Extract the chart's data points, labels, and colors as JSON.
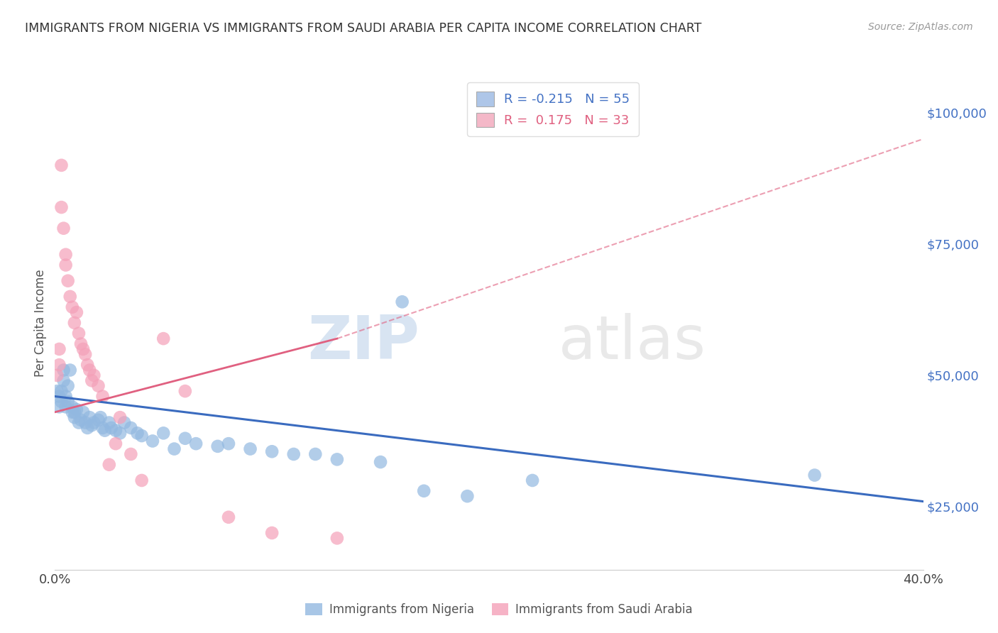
{
  "title": "IMMIGRANTS FROM NIGERIA VS IMMIGRANTS FROM SAUDI ARABIA PER CAPITA INCOME CORRELATION CHART",
  "source": "Source: ZipAtlas.com",
  "ylabel": "Per Capita Income",
  "yticks": [
    25000,
    50000,
    75000,
    100000
  ],
  "ytick_labels": [
    "$25,000",
    "$50,000",
    "$75,000",
    "$100,000"
  ],
  "xlim": [
    0.0,
    0.4
  ],
  "ylim": [
    13000,
    107000
  ],
  "nigeria_color": "#92b8e0",
  "saudi_color": "#f4a0b8",
  "nigeria_line_color": "#3a6bbf",
  "saudi_line_color": "#e06080",
  "background_color": "#ffffff",
  "grid_color": "#cccccc",
  "nigeria_points": [
    [
      0.001,
      47000
    ],
    [
      0.002,
      46000
    ],
    [
      0.002,
      44000
    ],
    [
      0.003,
      45000
    ],
    [
      0.003,
      47000
    ],
    [
      0.004,
      51000
    ],
    [
      0.004,
      49000
    ],
    [
      0.005,
      46000
    ],
    [
      0.005,
      44000
    ],
    [
      0.006,
      48000
    ],
    [
      0.006,
      45000
    ],
    [
      0.007,
      51000
    ],
    [
      0.008,
      43000
    ],
    [
      0.008,
      44000
    ],
    [
      0.009,
      43000
    ],
    [
      0.009,
      42000
    ],
    [
      0.01,
      43500
    ],
    [
      0.011,
      41000
    ],
    [
      0.012,
      41500
    ],
    [
      0.013,
      43000
    ],
    [
      0.014,
      41000
    ],
    [
      0.015,
      40000
    ],
    [
      0.016,
      42000
    ],
    [
      0.017,
      40500
    ],
    [
      0.018,
      41000
    ],
    [
      0.02,
      41500
    ],
    [
      0.021,
      42000
    ],
    [
      0.022,
      40000
    ],
    [
      0.023,
      39500
    ],
    [
      0.025,
      41000
    ],
    [
      0.026,
      40000
    ],
    [
      0.028,
      39500
    ],
    [
      0.03,
      39000
    ],
    [
      0.032,
      41000
    ],
    [
      0.035,
      40000
    ],
    [
      0.038,
      39000
    ],
    [
      0.04,
      38500
    ],
    [
      0.045,
      37500
    ],
    [
      0.05,
      39000
    ],
    [
      0.055,
      36000
    ],
    [
      0.06,
      38000
    ],
    [
      0.065,
      37000
    ],
    [
      0.075,
      36500
    ],
    [
      0.08,
      37000
    ],
    [
      0.09,
      36000
    ],
    [
      0.1,
      35500
    ],
    [
      0.11,
      35000
    ],
    [
      0.12,
      35000
    ],
    [
      0.13,
      34000
    ],
    [
      0.15,
      33500
    ],
    [
      0.16,
      64000
    ],
    [
      0.17,
      28000
    ],
    [
      0.19,
      27000
    ],
    [
      0.22,
      30000
    ],
    [
      0.35,
      31000
    ]
  ],
  "saudi_points": [
    [
      0.001,
      50000
    ],
    [
      0.002,
      55000
    ],
    [
      0.002,
      52000
    ],
    [
      0.003,
      90000
    ],
    [
      0.003,
      82000
    ],
    [
      0.004,
      78000
    ],
    [
      0.005,
      73000
    ],
    [
      0.005,
      71000
    ],
    [
      0.006,
      68000
    ],
    [
      0.007,
      65000
    ],
    [
      0.008,
      63000
    ],
    [
      0.009,
      60000
    ],
    [
      0.01,
      62000
    ],
    [
      0.011,
      58000
    ],
    [
      0.012,
      56000
    ],
    [
      0.013,
      55000
    ],
    [
      0.014,
      54000
    ],
    [
      0.015,
      52000
    ],
    [
      0.016,
      51000
    ],
    [
      0.017,
      49000
    ],
    [
      0.018,
      50000
    ],
    [
      0.02,
      48000
    ],
    [
      0.022,
      46000
    ],
    [
      0.025,
      33000
    ],
    [
      0.028,
      37000
    ],
    [
      0.03,
      42000
    ],
    [
      0.035,
      35000
    ],
    [
      0.04,
      30000
    ],
    [
      0.05,
      57000
    ],
    [
      0.06,
      47000
    ],
    [
      0.08,
      23000
    ],
    [
      0.1,
      20000
    ],
    [
      0.13,
      19000
    ]
  ],
  "nigeria_line": [
    0.0,
    46000,
    0.4,
    26000
  ],
  "saudi_line_solid": [
    0.0,
    43000,
    0.13,
    57000
  ],
  "saudi_line_dashed": [
    0.13,
    57000,
    0.4,
    95000
  ]
}
